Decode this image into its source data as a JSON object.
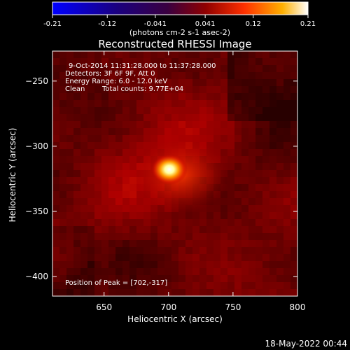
{
  "chart_data": {
    "type": "heatmap",
    "title": "Reconstructed RHESSI Image",
    "xlabel": "Heliocentric X (arcsec)",
    "ylabel": "Heliocentric Y (arcsec)",
    "xlim": [
      610,
      800
    ],
    "ylim": [
      -415,
      -227
    ],
    "x_ticks": [
      650,
      700,
      750,
      800
    ],
    "y_ticks": [
      -250,
      -300,
      -350,
      -400
    ],
    "colorbar": {
      "range": [
        -0.21,
        0.21
      ],
      "ticks": [
        "-0.21",
        "-0.12",
        "-0.041",
        "0.041",
        "0.12",
        "0.21"
      ],
      "unit_label": "(photons cm-2 s-1 asec-2)",
      "colormap": [
        "#0000ff",
        "#000040",
        "#200010",
        "#800000",
        "#ff3000",
        "#ffa000",
        "#ffffff"
      ]
    },
    "annotations": [
      "9-Oct-2014 11:31:28.000 to 11:37:28.000",
      "Detectors: 3F 6F 9F, Att 0",
      "Energy Range: 6.0 - 12.0 keV",
      "Clean",
      "Total counts: 9.77E+04"
    ],
    "peak_label": "Position of Peak = [702,-317]",
    "peak": {
      "x": 702,
      "y": -317,
      "value": 0.21
    },
    "timestamp": "18-May-2022 00:44"
  }
}
